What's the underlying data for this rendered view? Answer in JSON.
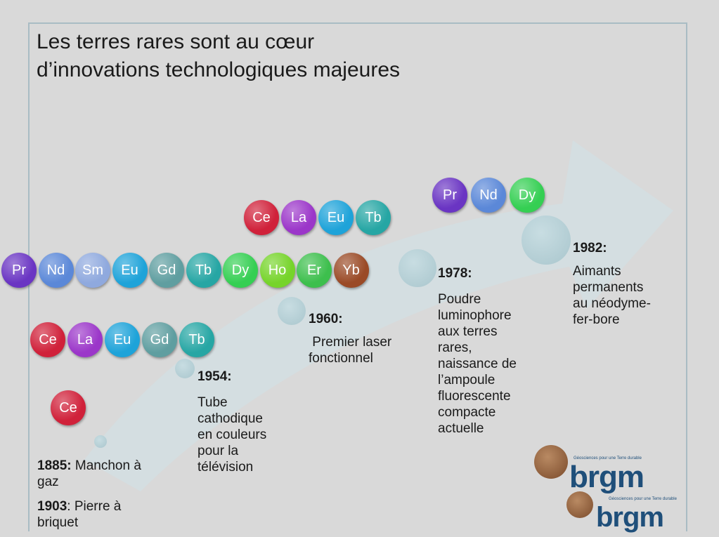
{
  "slide": {
    "title_line1": "Les terres rares sont au cœur",
    "title_line2": "d’innovations technologiques majeures"
  },
  "colors": {
    "Ce": "#d0213a",
    "La": "#9b36c9",
    "Eu": "#1ea3d9",
    "Gd": "#5f9ea0",
    "Tb": "#26a6a4",
    "Pr": "#6a35c3",
    "Nd": "#5b88d8",
    "Sm": "#8fa9de",
    "Dy": "#35cf53",
    "Ho": "#76d42a",
    "Er": "#3dbf4d",
    "Yb": "#9a4a26",
    "arrow": "#cfe2e8"
  },
  "groups": {
    "g1885": [
      "Ce"
    ],
    "g1903": [
      "Ce",
      "La",
      "Eu",
      "Gd",
      "Tb"
    ],
    "g1954": [
      "Pr",
      "Nd",
      "Sm",
      "Eu",
      "Gd",
      "Tb",
      "Dy",
      "Ho",
      "Er",
      "Yb"
    ],
    "g1960": [
      "Ce",
      "La",
      "Eu",
      "Tb"
    ],
    "g1978": [
      "Pr",
      "Nd",
      "Dy"
    ]
  },
  "events": {
    "e1885": {
      "year": "1885:",
      "text": " Manchon à",
      "text2": "gaz"
    },
    "e1903": {
      "year": "1903",
      "text": ": Pierre à",
      "text2": "briquet"
    },
    "e1954": {
      "year": "1954:",
      "lines": [
        "Tube",
        "cathodique",
        "en couleurs",
        "pour la",
        "télévision"
      ]
    },
    "e1960": {
      "year": "1960:",
      "lines": [
        " Premier laser",
        "fonctionnel"
      ]
    },
    "e1978": {
      "year": "1978:",
      "lines": [
        "Poudre",
        "luminophore",
        "aux terres",
        "rares,",
        "naissance de",
        "l’ampoule",
        "fluorescente",
        "compacte",
        "actuelle"
      ]
    },
    "e1982": {
      "year": "1982:",
      "lines": [
        "Aimants",
        "permanents",
        "au néodyme-",
        "fer-bore"
      ]
    }
  },
  "logos": {
    "logo1": {
      "word": "brgm",
      "tagline": "Géosciences pour une Terre durable"
    },
    "logo2": {
      "word": "brgm",
      "tagline": "Géosciences pour une Terre durable"
    }
  }
}
